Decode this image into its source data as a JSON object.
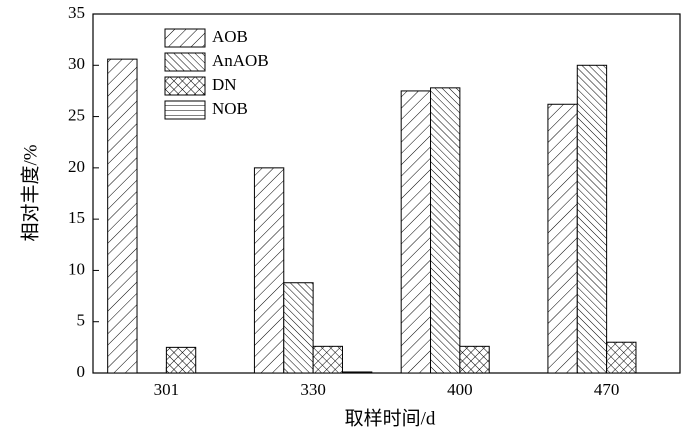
{
  "chart_data": {
    "type": "bar",
    "xlabel": "取样时间/d",
    "ylabel": "相对丰度/%",
    "categories": [
      "301",
      "330",
      "400",
      "470"
    ],
    "series": [
      {
        "name": "AOB",
        "color": "#000000",
        "hatch": "/",
        "values": [
          30.6,
          20.0,
          27.5,
          26.2
        ]
      },
      {
        "name": "AnAOB",
        "color": "#000000",
        "hatch": "\\",
        "values": [
          0,
          8.8,
          27.8,
          30.0
        ]
      },
      {
        "name": "DN",
        "color": "#000000",
        "hatch": "x",
        "values": [
          2.5,
          2.6,
          2.6,
          3.0
        ]
      },
      {
        "name": "NOB",
        "color": "#000000",
        "hatch": "-",
        "values": [
          0,
          0.1,
          0,
          0
        ]
      }
    ],
    "ylim": [
      0,
      35
    ],
    "yticks": [
      0,
      5,
      10,
      15,
      20,
      25,
      30,
      35
    ],
    "legend": "upper left"
  }
}
